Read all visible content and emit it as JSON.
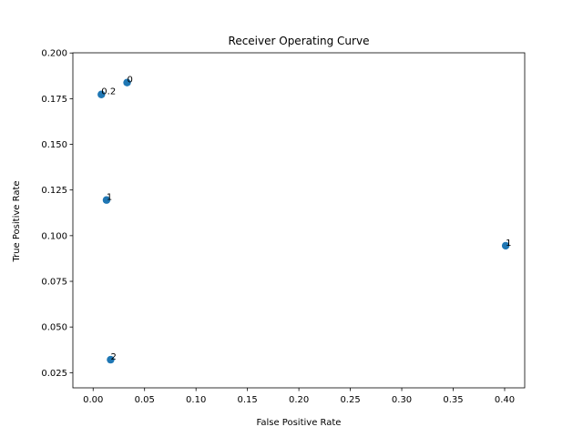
{
  "chart_data": {
    "type": "scatter",
    "title": "Receiver Operating Curve",
    "xlabel": "False Positive Rate",
    "ylabel": "True Positive Rate",
    "xlim": [
      -0.0197,
      0.4195
    ],
    "ylim": [
      0.0167,
      0.2001
    ],
    "xticks": [
      0.0,
      0.05,
      0.1,
      0.15,
      0.2,
      0.25,
      0.3,
      0.35,
      0.4
    ],
    "xtick_labels": [
      "0.00",
      "0.05",
      "0.10",
      "0.15",
      "0.20",
      "0.25",
      "0.30",
      "0.35",
      "0.40"
    ],
    "yticks": [
      0.025,
      0.05,
      0.075,
      0.1,
      0.125,
      0.15,
      0.175,
      0.2
    ],
    "ytick_labels": [
      "0.025",
      "0.050",
      "0.075",
      "0.100",
      "0.125",
      "0.150",
      "0.175",
      "0.200"
    ],
    "grid": false,
    "marker_color": "#1f77b4",
    "points": [
      {
        "x": 0.033,
        "y": 0.1838,
        "label": "0"
      },
      {
        "x": 0.008,
        "y": 0.1773,
        "label": "0.2"
      },
      {
        "x": 0.013,
        "y": 0.1195,
        "label": "1"
      },
      {
        "x": 0.401,
        "y": 0.0945,
        "label": "1"
      },
      {
        "x": 0.017,
        "y": 0.0321,
        "label": "2"
      }
    ]
  }
}
